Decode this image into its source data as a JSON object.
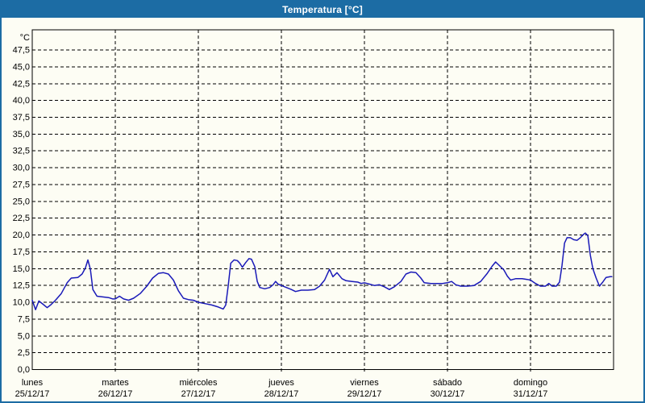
{
  "window": {
    "title": "Temperatura [°C]",
    "title_bar_color": "#1c6ca4",
    "border_color": "#1c6ca4",
    "background_color": "#fdfdf4"
  },
  "chart_data": {
    "type": "line",
    "title": "Temperatura [°C]",
    "grid": "dashed",
    "legend_position": "none",
    "line_color": "#1a1ab8",
    "grid_color": "#000000",
    "text_color": "#000000",
    "y_axis": {
      "unit_label": "°C",
      "min": 0,
      "max": 50.5,
      "tick_step": 2.5,
      "tick_values": [
        0,
        2.5,
        5,
        7.5,
        10,
        12.5,
        15,
        17.5,
        20,
        22.5,
        25,
        27.5,
        30,
        32.5,
        35,
        37.5,
        40,
        42.5,
        45,
        47.5
      ],
      "tick_labels": [
        "0,0",
        "2,5",
        "5,0",
        "7,5",
        "10,0",
        "12,5",
        "15,0",
        "17,5",
        "20,0",
        "22,5",
        "25,0",
        "27,5",
        "30,0",
        "32,5",
        "35,0",
        "37,5",
        "40,0",
        "42,5",
        "45,0",
        "47,5"
      ]
    },
    "x_axis": {
      "range_days": 7,
      "days": [
        {
          "name": "lunes",
          "date": "25/12/17"
        },
        {
          "name": "martes",
          "date": "26/12/17"
        },
        {
          "name": "miércoles",
          "date": "27/12/17"
        },
        {
          "name": "jueves",
          "date": "28/12/17"
        },
        {
          "name": "viernes",
          "date": "29/12/17"
        },
        {
          "name": "sábado",
          "date": "30/12/17"
        },
        {
          "name": "domingo",
          "date": "31/12/17"
        }
      ]
    },
    "series": [
      {
        "name": "Temperatura",
        "x_days": [
          0.0,
          0.04,
          0.08,
          0.13,
          0.18,
          0.22,
          0.28,
          0.35,
          0.42,
          0.47,
          0.55,
          0.6,
          0.64,
          0.67,
          0.7,
          0.73,
          0.78,
          0.85,
          0.92,
          0.97,
          1.0,
          1.05,
          1.1,
          1.16,
          1.22,
          1.3,
          1.38,
          1.45,
          1.52,
          1.58,
          1.64,
          1.7,
          1.76,
          1.82,
          1.88,
          1.94,
          2.0,
          2.08,
          2.16,
          2.24,
          2.3,
          2.33,
          2.36,
          2.39,
          2.43,
          2.47,
          2.5,
          2.53,
          2.57,
          2.61,
          2.64,
          2.68,
          2.71,
          2.74,
          2.8,
          2.86,
          2.9,
          2.93,
          2.96,
          3.0,
          3.06,
          3.12,
          3.17,
          3.24,
          3.32,
          3.4,
          3.46,
          3.52,
          3.58,
          3.62,
          3.67,
          3.73,
          3.78,
          3.85,
          3.92,
          3.96,
          4.0,
          4.06,
          4.12,
          4.18,
          4.24,
          4.3,
          4.36,
          4.44,
          4.5,
          4.56,
          4.62,
          4.68,
          4.72,
          4.8,
          4.88,
          4.94,
          5.0,
          5.05,
          5.1,
          5.16,
          5.24,
          5.32,
          5.4,
          5.48,
          5.54,
          5.58,
          5.63,
          5.68,
          5.72,
          5.76,
          5.82,
          5.9,
          5.96,
          6.0,
          6.06,
          6.12,
          6.18,
          6.22,
          6.26,
          6.31,
          6.35,
          6.38,
          6.41,
          6.44,
          6.48,
          6.52,
          6.56,
          6.6,
          6.64,
          6.66,
          6.69,
          6.72,
          6.75,
          6.79,
          6.83,
          6.87,
          6.91,
          6.96,
          6.98
        ],
        "temps_c": [
          10.3,
          8.9,
          10.2,
          9.7,
          9.2,
          9.6,
          10.3,
          11.3,
          12.9,
          13.6,
          13.7,
          14.2,
          15.1,
          16.3,
          14.9,
          11.9,
          10.9,
          10.8,
          10.7,
          10.5,
          10.5,
          10.9,
          10.5,
          10.3,
          10.6,
          11.3,
          12.4,
          13.6,
          14.3,
          14.4,
          14.2,
          13.3,
          11.7,
          10.6,
          10.4,
          10.3,
          10.0,
          9.8,
          9.6,
          9.3,
          9.0,
          9.6,
          12.5,
          15.8,
          16.3,
          16.2,
          15.8,
          15.2,
          15.9,
          16.5,
          16.4,
          15.3,
          13.1,
          12.2,
          12.0,
          12.2,
          12.6,
          13.1,
          12.7,
          12.5,
          12.2,
          11.9,
          11.6,
          11.8,
          11.8,
          11.9,
          12.4,
          13.3,
          14.9,
          13.8,
          14.4,
          13.5,
          13.2,
          13.1,
          13.0,
          12.8,
          12.9,
          12.7,
          12.5,
          12.6,
          12.3,
          11.9,
          12.3,
          13.1,
          14.2,
          14.5,
          14.4,
          13.6,
          12.9,
          12.8,
          12.8,
          12.8,
          12.9,
          13.1,
          12.6,
          12.4,
          12.4,
          12.5,
          13.1,
          14.3,
          15.4,
          16.0,
          15.4,
          14.8,
          13.9,
          13.3,
          13.5,
          13.5,
          13.4,
          13.3,
          12.8,
          12.4,
          12.4,
          12.8,
          12.4,
          12.4,
          13.0,
          15.5,
          18.8,
          19.6,
          19.6,
          19.3,
          19.2,
          19.6,
          20.1,
          20.3,
          19.9,
          17.0,
          15.0,
          13.6,
          12.4,
          13.0,
          13.7,
          13.8,
          13.8
        ]
      }
    ]
  }
}
